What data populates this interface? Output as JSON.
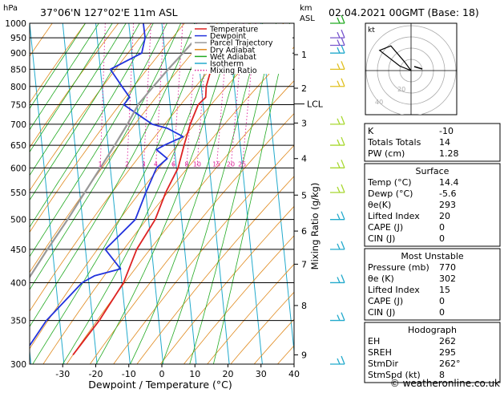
{
  "header": {
    "location": "37°06'N 127°02'E 11m ASL",
    "datetime": "02.04.2021 00GMT (Base: 18)",
    "hpa_unit": "hPa",
    "km_unit": "km",
    "asl_unit": "ASL"
  },
  "chart_data": {
    "type": "line",
    "title": "37°06'N 127°02'E 11m ASL",
    "xlabel": "Dewpoint / Temperature (°C)",
    "ylabel": "hPa",
    "xlim": [
      -40,
      40
    ],
    "ylim": [
      1000,
      300
    ],
    "y_scale": "log",
    "skew_per_decade": 82,
    "x_ticks": [
      -30,
      -20,
      -10,
      0,
      10,
      20,
      30,
      40
    ],
    "pressure_levels": [
      300,
      350,
      400,
      450,
      500,
      550,
      600,
      650,
      700,
      750,
      800,
      850,
      900,
      950,
      1000
    ],
    "km_labels": [
      {
        "p": 310,
        "label": "9"
      },
      {
        "p": 369,
        "label": "8"
      },
      {
        "p": 427,
        "label": "7"
      },
      {
        "p": 480,
        "label": "6"
      },
      {
        "p": 545,
        "label": "5"
      },
      {
        "p": 620,
        "label": "4"
      },
      {
        "p": 703,
        "label": "3"
      },
      {
        "p": 795,
        "label": "2"
      },
      {
        "p": 895,
        "label": "1"
      }
    ],
    "lcl": {
      "p": 752,
      "label": "LCL"
    },
    "mixing_ratio_label": "Mixing Ratio (g/kg)",
    "mixing_ratios": [
      1,
      2,
      3,
      4,
      6,
      8,
      10,
      15,
      20,
      25
    ],
    "mixing_ratio_tick_labels": [
      "1",
      "2",
      "3",
      "4",
      "6",
      "8",
      "10",
      "15",
      "20",
      "25"
    ],
    "legend": {
      "placement": "top-left",
      "entries": [
        {
          "name": "Temperature",
          "color": "#dd2222",
          "style": "solid"
        },
        {
          "name": "Dewpoint",
          "color": "#2233dd",
          "style": "solid"
        },
        {
          "name": "Parcel Trajectory",
          "color": "#999999",
          "style": "solid"
        },
        {
          "name": "Dry Adiabat",
          "color": "#e08a1e",
          "style": "solid"
        },
        {
          "name": "Wet Adiabat",
          "color": "#22aa22",
          "style": "solid"
        },
        {
          "name": "Isotherm",
          "color": "#22aacc",
          "style": "solid"
        },
        {
          "name": "Mixing Ratio",
          "color": "#dd2299",
          "style": "dotted"
        }
      ]
    },
    "series": [
      {
        "name": "Temperature",
        "color": "#dd2222",
        "points": [
          [
            1000,
            14.4
          ],
          [
            960,
            11.5
          ],
          [
            920,
            9.5
          ],
          [
            900,
            10.5
          ],
          [
            870,
            13.5
          ],
          [
            850,
            13.5
          ],
          [
            800,
            11.5
          ],
          [
            770,
            11.0
          ],
          [
            750,
            8.5
          ],
          [
            700,
            5.5
          ],
          [
            650,
            3.0
          ],
          [
            600,
            0.5
          ],
          [
            550,
            -4.0
          ],
          [
            500,
            -8.0
          ],
          [
            450,
            -14.5
          ],
          [
            400,
            -19.5
          ],
          [
            350,
            -28.0
          ],
          [
            310,
            -37.0
          ]
        ]
      },
      {
        "name": "Dewpoint",
        "color": "#2233dd",
        "points": [
          [
            1000,
            -5.6
          ],
          [
            950,
            -5.5
          ],
          [
            900,
            -7.0
          ],
          [
            850,
            -17.0
          ],
          [
            800,
            -14.0
          ],
          [
            770,
            -12.0
          ],
          [
            750,
            -14.0
          ],
          [
            700,
            -6.0
          ],
          [
            690,
            -1.5
          ],
          [
            670,
            3.0
          ],
          [
            650,
            -3.0
          ],
          [
            640,
            -5.5
          ],
          [
            620,
            -2.5
          ],
          [
            600,
            -6.0
          ],
          [
            550,
            -10.0
          ],
          [
            500,
            -14.0
          ],
          [
            450,
            -24.0
          ],
          [
            420,
            -20.0
          ],
          [
            410,
            -28.0
          ],
          [
            400,
            -32.0
          ],
          [
            350,
            -44.0
          ],
          [
            310,
            -52.0
          ]
        ]
      },
      {
        "name": "Parcel Trajectory",
        "color": "#999999",
        "points": [
          [
            1000,
            14.4
          ],
          [
            900,
            5.5
          ],
          [
            850,
            0.5
          ],
          [
            800,
            -4.5
          ],
          [
            752,
            -9.5
          ],
          [
            700,
            -13.5
          ],
          [
            650,
            -18.0
          ],
          [
            600,
            -23.0
          ],
          [
            550,
            -28.5
          ],
          [
            500,
            -34.5
          ],
          [
            450,
            -41.5
          ],
          [
            400,
            -49.0
          ],
          [
            350,
            -58.0
          ],
          [
            300,
            -67.5
          ]
        ]
      }
    ]
  },
  "wind_barbs": [
    {
      "p": 1000,
      "color": "#22aa22"
    },
    {
      "p": 950,
      "color": "#7755cc"
    },
    {
      "p": 925,
      "color": "#7755cc"
    },
    {
      "p": 900,
      "color": "#22aacc"
    },
    {
      "p": 850,
      "color": "#e0c020"
    },
    {
      "p": 800,
      "color": "#e0c020"
    },
    {
      "p": 700,
      "color": "#a8d830"
    },
    {
      "p": 650,
      "color": "#a8d830"
    },
    {
      "p": 600,
      "color": "#a8d830"
    },
    {
      "p": 550,
      "color": "#a8d830"
    },
    {
      "p": 500,
      "color": "#22aacc"
    },
    {
      "p": 450,
      "color": "#22aacc"
    },
    {
      "p": 400,
      "color": "#22aacc"
    },
    {
      "p": 350,
      "color": "#22aacc"
    },
    {
      "p": 300,
      "color": "#22aacc"
    }
  ],
  "hodograph": {
    "unit_label": "kt",
    "ring_labels": [
      "20",
      "40"
    ],
    "points": [
      [
        0,
        0
      ],
      [
        -5,
        2
      ],
      [
        -14,
        9
      ],
      [
        -9,
        11
      ],
      [
        -3,
        4
      ],
      [
        0,
        0
      ]
    ]
  },
  "indices": {
    "rows": [
      {
        "label": "K",
        "value": "-10"
      },
      {
        "label": "Totals Totals",
        "value": "14"
      },
      {
        "label": "PW (cm)",
        "value": "1.28"
      }
    ]
  },
  "surface": {
    "title": "Surface",
    "rows": [
      {
        "label": "Temp (°C)",
        "value": "14.4"
      },
      {
        "label": "Dewp (°C)",
        "value": "-5.6"
      },
      {
        "label": "θe(K)",
        "value": "293"
      },
      {
        "label": "Lifted Index",
        "value": "20"
      },
      {
        "label": "CAPE (J)",
        "value": "0"
      },
      {
        "label": "CIN (J)",
        "value": "0"
      }
    ]
  },
  "most_unstable": {
    "title": "Most Unstable",
    "rows": [
      {
        "label": "Pressure (mb)",
        "value": "770"
      },
      {
        "label": "θe (K)",
        "value": "302"
      },
      {
        "label": "Lifted Index",
        "value": "15"
      },
      {
        "label": "CAPE (J)",
        "value": "0"
      },
      {
        "label": "CIN (J)",
        "value": "0"
      }
    ]
  },
  "hodograph_table": {
    "title": "Hodograph",
    "rows": [
      {
        "label": "EH",
        "value": "262"
      },
      {
        "label": "SREH",
        "value": "295"
      },
      {
        "label": "StmDir",
        "value": "262°"
      },
      {
        "label": "StmSpd (kt)",
        "value": "8"
      }
    ]
  },
  "footer": {
    "copyright": "© weatheronline.co.uk"
  }
}
